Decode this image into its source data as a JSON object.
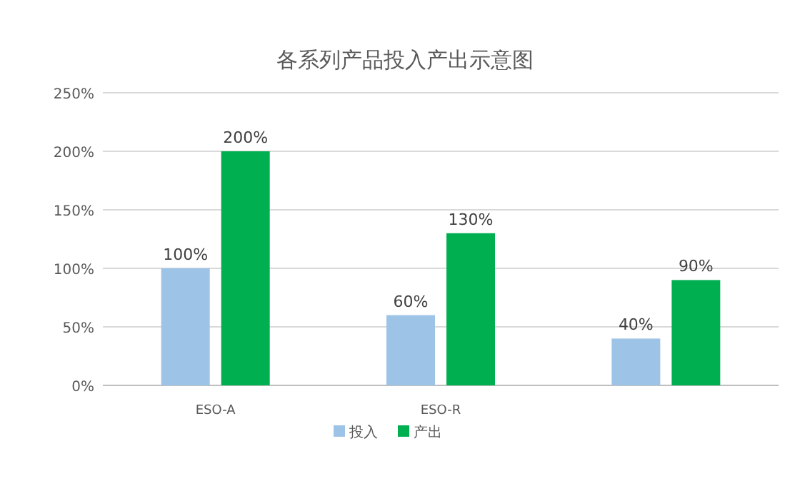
{
  "chart_data": {
    "type": "bar",
    "title": "各系列产品投入产出示意图",
    "categories": [
      "ESO-A",
      "ESO-R",
      null
    ],
    "series": [
      {
        "name": "投入",
        "color": "#9dc3e6",
        "values": [
          100,
          60,
          40
        ],
        "value_labels": [
          "100%",
          "60%",
          "40%"
        ]
      },
      {
        "name": "产出",
        "color": "#00b050",
        "values": [
          200,
          130,
          90
        ],
        "value_labels": [
          "200%",
          "130%",
          "90%"
        ]
      }
    ],
    "ylim": [
      0,
      250
    ],
    "yticks": [
      {
        "value": 0,
        "label": "0%"
      },
      {
        "value": 50,
        "label": "50%"
      },
      {
        "value": 100,
        "label": "100%"
      },
      {
        "value": 150,
        "label": "150%"
      },
      {
        "value": 200,
        "label": "200%"
      },
      {
        "value": 250,
        "label": "250%"
      }
    ],
    "grid": "y",
    "legend": "bottom"
  }
}
